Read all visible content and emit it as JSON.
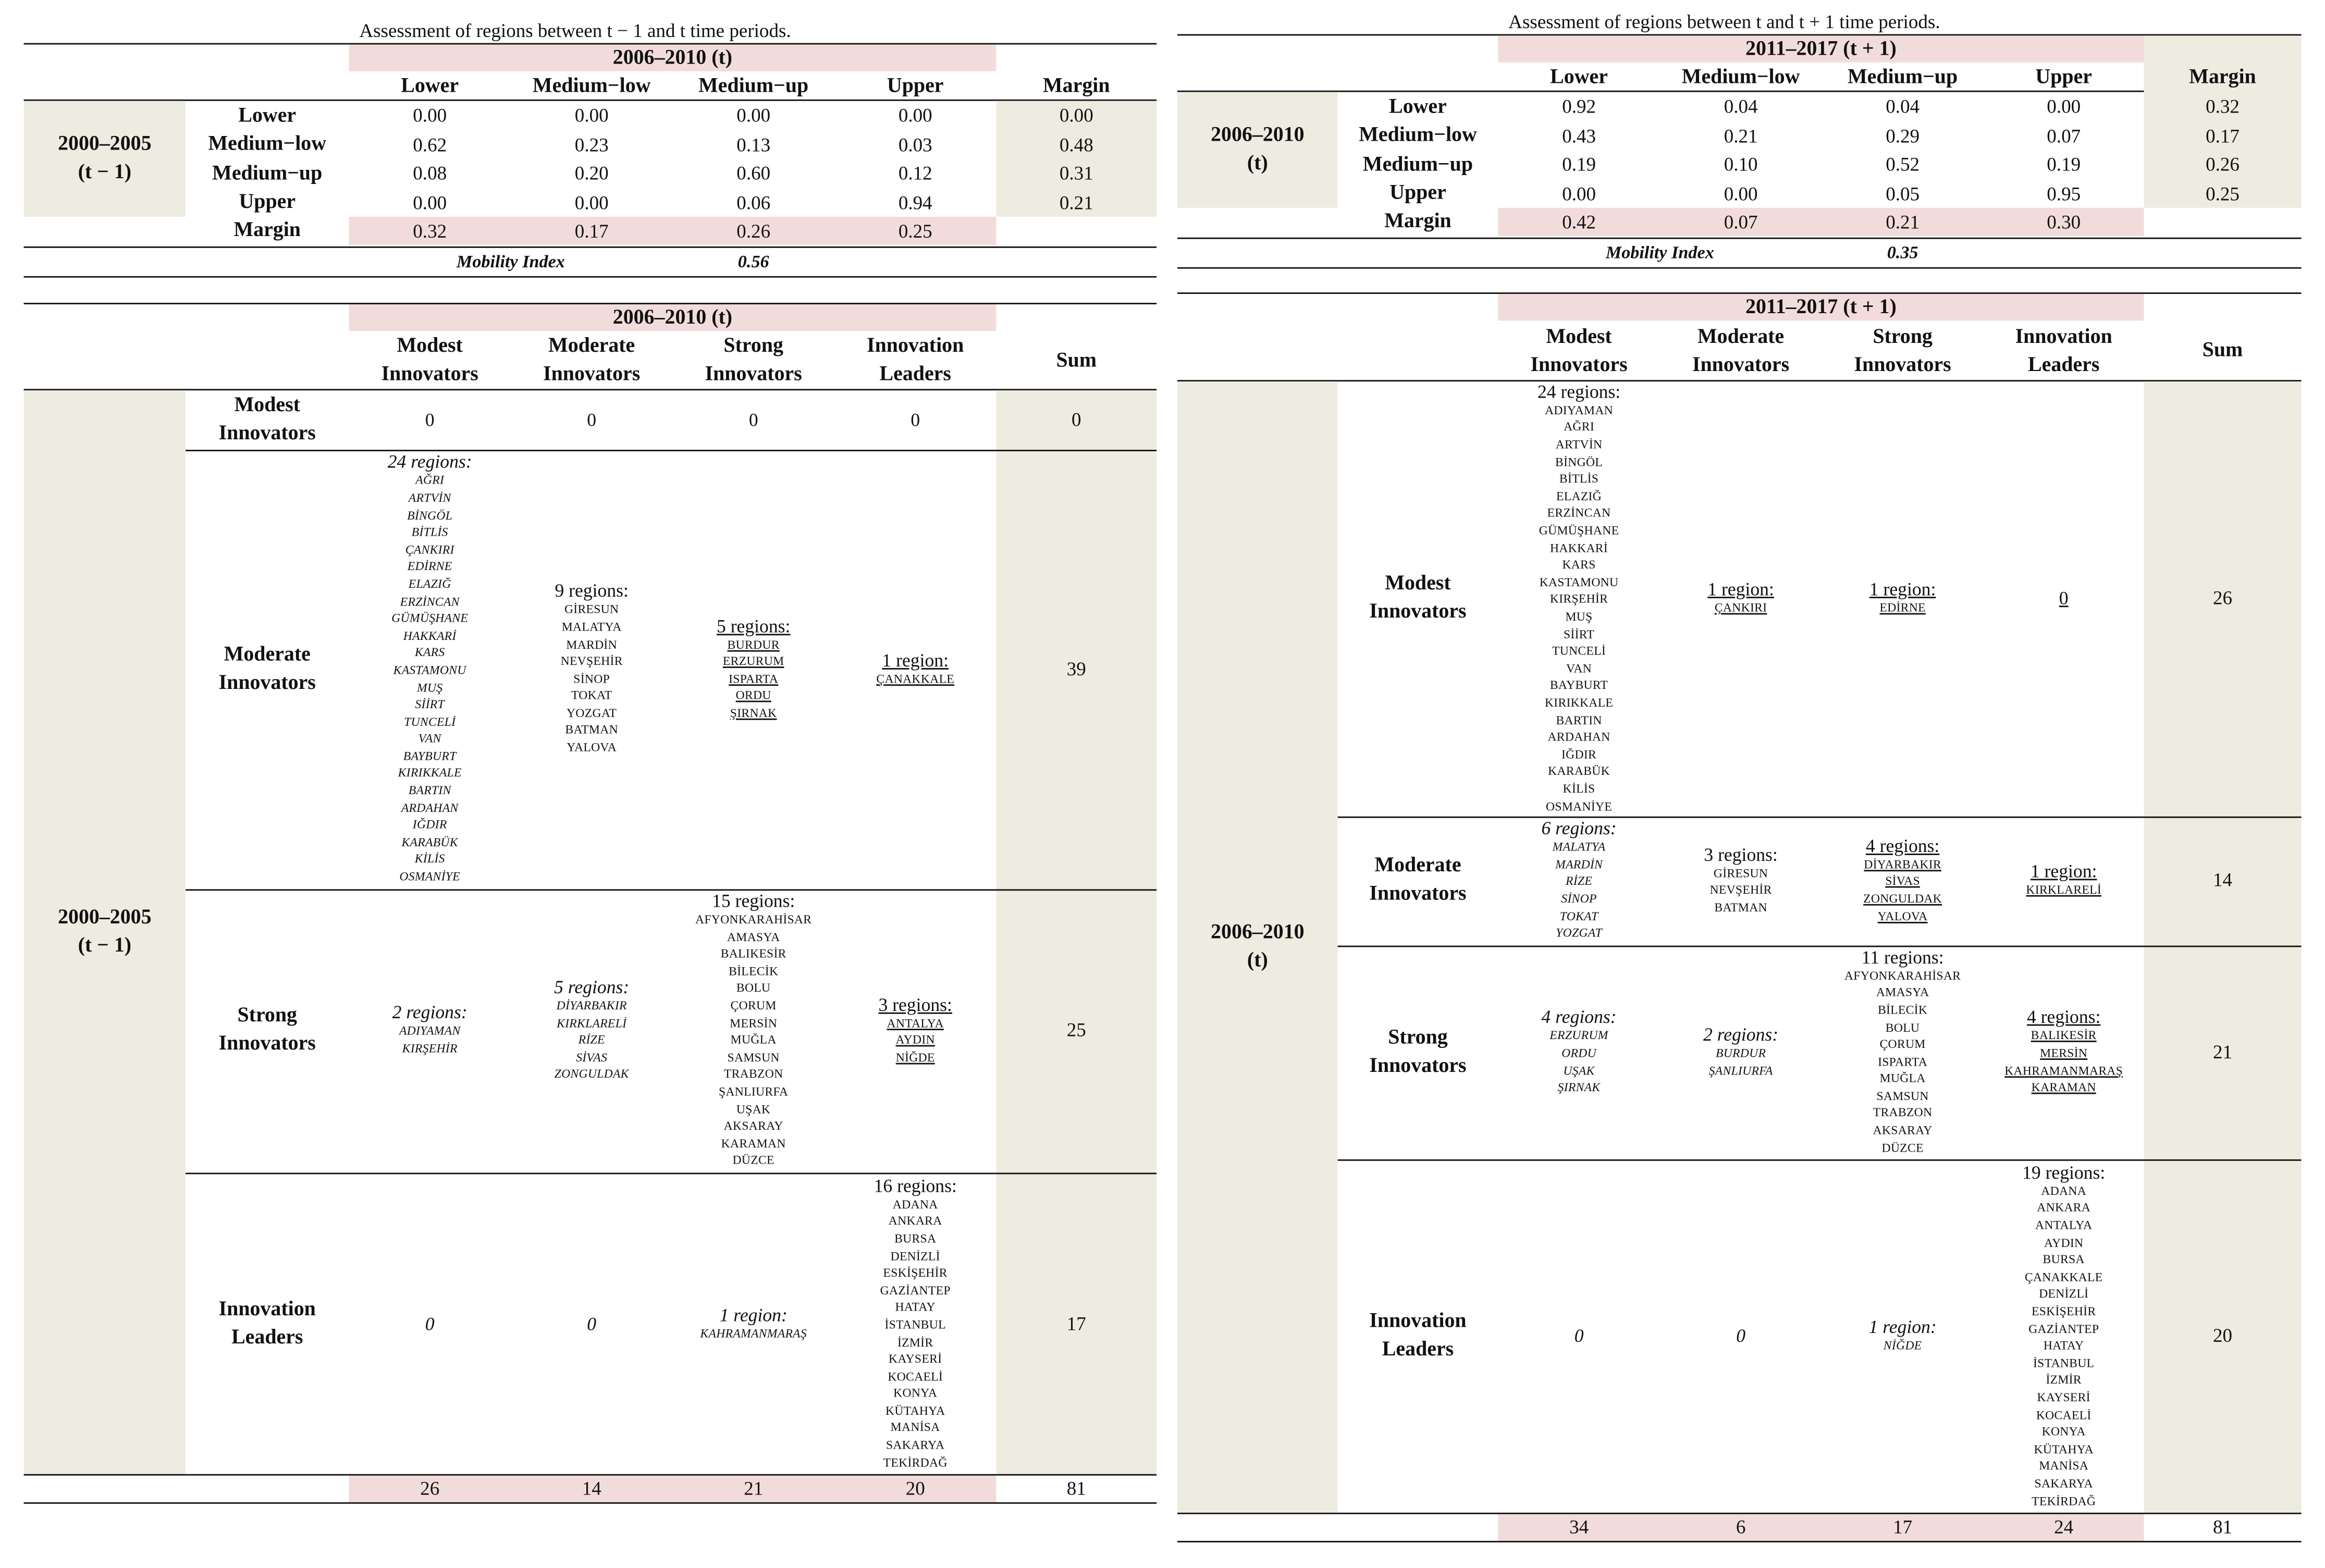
{
  "left": {
    "caption": "Assessment of regions between t − 1 and t time periods.",
    "col_period": "2006–2010 (t)",
    "row_period_line1": "2000–2005",
    "row_period_line2": "(t − 1)",
    "level_cols": [
      "Lower",
      "Medium−low",
      "Medium−up",
      "Upper"
    ],
    "margin_label": "Margin",
    "level_rows": [
      {
        "label": "Lower",
        "values": [
          "0.00",
          "0.00",
          "0.00",
          "0.00"
        ],
        "margin": "0.00"
      },
      {
        "label": "Medium−low",
        "values": [
          "0.62",
          "0.23",
          "0.13",
          "0.03"
        ],
        "margin": "0.48"
      },
      {
        "label": "Medium−up",
        "values": [
          "0.08",
          "0.20",
          "0.60",
          "0.12"
        ],
        "margin": "0.31"
      },
      {
        "label": "Upper",
        "values": [
          "0.00",
          "0.00",
          "0.06",
          "0.94"
        ],
        "margin": "0.21"
      }
    ],
    "margin_row": [
      "0.32",
      "0.17",
      "0.26",
      "0.25"
    ],
    "mobility_label": "Mobility Index",
    "mobility_value": "0.56",
    "inno_period": "2006–2010 (t)",
    "inno_cols": [
      [
        "Modest",
        "Innovators"
      ],
      [
        "Moderate",
        "Innovators"
      ],
      [
        "Strong",
        "Innovators"
      ],
      [
        "Innovation",
        "Leaders"
      ]
    ],
    "sum_label": "Sum",
    "inno_rows": [
      {
        "label": [
          "Modest",
          "Innovators"
        ],
        "cells": [
          {
            "head": "0",
            "regions": []
          },
          {
            "head": "0",
            "regions": []
          },
          {
            "head": "0",
            "regions": []
          },
          {
            "head": "0",
            "regions": []
          }
        ],
        "sum": "0"
      },
      {
        "label": [
          "Moderate",
          "Innovators"
        ],
        "cells": [
          {
            "head": "24 regions:",
            "regions": [
              "AĞRI",
              "ARTVİN",
              "BİNGÖL",
              "BİTLİS",
              "ÇANKIRI",
              "EDİRNE",
              "ELAZIĞ",
              "ERZİNCAN",
              "GÜMÜŞHANE",
              "HAKKARİ",
              "KARS",
              "KASTAMONU",
              "MUŞ",
              "SİİRT",
              "TUNCELİ",
              "VAN",
              "BAYBURT",
              "KIRIKKALE",
              "BARTIN",
              "ARDAHAN",
              "IĞDIR",
              "KARABÜK",
              "KİLİS",
              "OSMANİYE"
            ]
          },
          {
            "head": "9 regions:",
            "regions": [
              "GİRESUN",
              "MALATYA",
              "MARDİN",
              "NEVŞEHİR",
              "SİNOP",
              "TOKAT",
              "YOZGAT",
              "BATMAN",
              "YALOVA"
            ]
          },
          {
            "head": "5 regions:",
            "regions": [
              "BURDUR",
              "ERZURUM",
              "ISPARTA",
              "ORDU",
              "ŞIRNAK"
            ]
          },
          {
            "head": "1 region:",
            "regions": [
              "ÇANAKKALE"
            ]
          }
        ],
        "sum": "39"
      },
      {
        "label": [
          "Strong",
          "Innovators"
        ],
        "cells": [
          {
            "head": "2 regions:",
            "regions": [
              "ADIYAMAN",
              "KIRŞEHİR"
            ]
          },
          {
            "head": "5 regions:",
            "regions": [
              "DİYARBAKIR",
              "KIRKLARELİ",
              "RİZE",
              "SİVAS",
              "ZONGULDAK"
            ]
          },
          {
            "head": "15 regions:",
            "regions": [
              "AFYONKARAHİSAR",
              "AMASYA",
              "BALIKESİR",
              "BİLECİK",
              "BOLU",
              "ÇORUM",
              "MERSİN",
              "MUĞLA",
              "SAMSUN",
              "TRABZON",
              "ŞANLIURFA",
              "UŞAK",
              "AKSARAY",
              "KARAMAN",
              "DÜZCE"
            ]
          },
          {
            "head": "3 regions:",
            "regions": [
              "ANTALYA",
              "AYDIN",
              "NİĞDE"
            ]
          }
        ],
        "sum": "25"
      },
      {
        "label": [
          "Innovation",
          "Leaders"
        ],
        "cells": [
          {
            "head": "0",
            "regions": []
          },
          {
            "head": "0",
            "regions": []
          },
          {
            "head": "1 region:",
            "regions": [
              "KAHRAMANMARAŞ"
            ]
          },
          {
            "head": "16 regions:",
            "regions": [
              "ADANA",
              "ANKARA",
              "BURSA",
              "DENİZLİ",
              "ESKİŞEHİR",
              "GAZİANTEP",
              "HATAY",
              "İSTANBUL",
              "İZMİR",
              "KAYSERİ",
              "KOCAELİ",
              "KONYA",
              "KÜTAHYA",
              "MANİSA",
              "SAKARYA",
              "TEKİRDAĞ"
            ]
          }
        ],
        "sum": "17"
      }
    ],
    "totals": [
      "26",
      "14",
      "21",
      "20"
    ],
    "total_sum": "81"
  },
  "right": {
    "caption": "Assessment of regions between t and t + 1 time periods.",
    "col_period": "2011–2017 (t + 1)",
    "row_period_line1": "2006–2010",
    "row_period_line2": "(t)",
    "level_cols": [
      "Lower",
      "Medium−low",
      "Medium−up",
      "Upper"
    ],
    "margin_label": "Margin",
    "level_rows": [
      {
        "label": "Lower",
        "values": [
          "0.92",
          "0.04",
          "0.04",
          "0.00"
        ],
        "margin": "0.32"
      },
      {
        "label": "Medium−low",
        "values": [
          "0.43",
          "0.21",
          "0.29",
          "0.07"
        ],
        "margin": "0.17"
      },
      {
        "label": "Medium−up",
        "values": [
          "0.19",
          "0.10",
          "0.52",
          "0.19"
        ],
        "margin": "0.26"
      },
      {
        "label": "Upper",
        "values": [
          "0.00",
          "0.00",
          "0.05",
          "0.95"
        ],
        "margin": "0.25"
      }
    ],
    "margin_row": [
      "0.42",
      "0.07",
      "0.21",
      "0.30"
    ],
    "mobility_label": "Mobility Index",
    "mobility_value": "0.35",
    "inno_period": "2011–2017 (t + 1)",
    "inno_cols": [
      [
        "Modest",
        "Innovators"
      ],
      [
        "Moderate",
        "Innovators"
      ],
      [
        "Strong",
        "Innovators"
      ],
      [
        "Innovation",
        "Leaders"
      ]
    ],
    "sum_label": "Sum",
    "inno_rows": [
      {
        "label": [
          "Modest",
          "Innovators"
        ],
        "cells": [
          {
            "head": "24 regions:",
            "regions": [
              "ADIYAMAN",
              "AĞRI",
              "ARTVİN",
              "BİNGÖL",
              "BİTLİS",
              "ELAZIĞ",
              "ERZİNCAN",
              "GÜMÜŞHANE",
              "HAKKARİ",
              "KARS",
              "KASTAMONU",
              "KIRŞEHİR",
              "MUŞ",
              "SİİRT",
              "TUNCELİ",
              "VAN",
              "BAYBURT",
              "KIRIKKALE",
              "BARTIN",
              "ARDAHAN",
              "IĞDIR",
              "KARABÜK",
              "KİLİS",
              "OSMANİYE"
            ]
          },
          {
            "head": "1 region:",
            "regions": [
              "ÇANKIRI"
            ]
          },
          {
            "head": "1 region:",
            "regions": [
              "EDİRNE"
            ]
          },
          {
            "head": "0",
            "regions": []
          }
        ],
        "sum": "26"
      },
      {
        "label": [
          "Moderate",
          "Innovators"
        ],
        "cells": [
          {
            "head": "6 regions:",
            "regions": [
              "MALATYA",
              "MARDİN",
              "RİZE",
              "SİNOP",
              "TOKAT",
              "YOZGAT"
            ]
          },
          {
            "head": "3 regions:",
            "regions": [
              "GİRESUN",
              "NEVŞEHİR",
              "BATMAN"
            ]
          },
          {
            "head": "4 regions:",
            "regions": [
              "DİYARBAKIR",
              "SİVAS",
              "ZONGULDAK",
              "YALOVA"
            ]
          },
          {
            "head": "1 region:",
            "regions": [
              "KIRKLARELİ"
            ]
          }
        ],
        "sum": "14"
      },
      {
        "label": [
          "Strong",
          "Innovators"
        ],
        "cells": [
          {
            "head": "4 regions:",
            "regions": [
              "ERZURUM",
              "ORDU",
              "UŞAK",
              "ŞIRNAK"
            ]
          },
          {
            "head": "2 regions:",
            "regions": [
              "BURDUR",
              "ŞANLIURFA"
            ]
          },
          {
            "head": "11 regions:",
            "regions": [
              "AFYONKARAHİSAR",
              "AMASYA",
              "BİLECİK",
              "BOLU",
              "ÇORUM",
              "ISPARTA",
              "MUĞLA",
              "SAMSUN",
              "TRABZON",
              "AKSARAY",
              "DÜZCE"
            ]
          },
          {
            "head": "4 regions:",
            "regions": [
              "BALIKESİR",
              "MERSİN",
              "KAHRAMANMARAŞ",
              "KARAMAN"
            ]
          }
        ],
        "sum": "21"
      },
      {
        "label": [
          "Innovation",
          "Leaders"
        ],
        "cells": [
          {
            "head": "0",
            "regions": []
          },
          {
            "head": "0",
            "regions": []
          },
          {
            "head": "1 region:",
            "regions": [
              "NİĞDE"
            ]
          },
          {
            "head": "19 regions:",
            "regions": [
              "ADANA",
              "ANKARA",
              "ANTALYA",
              "AYDIN",
              "BURSA",
              "ÇANAKKALE",
              "DENİZLİ",
              "ESKİŞEHİR",
              "GAZİANTEP",
              "HATAY",
              "İSTANBUL",
              "İZMİR",
              "KAYSERİ",
              "KOCAELİ",
              "KONYA",
              "KÜTAHYA",
              "MANİSA",
              "SAKARYA",
              "TEKİRDAĞ"
            ]
          }
        ],
        "sum": "20"
      }
    ],
    "totals": [
      "34",
      "6",
      "17",
      "24"
    ],
    "total_sum": "81"
  }
}
